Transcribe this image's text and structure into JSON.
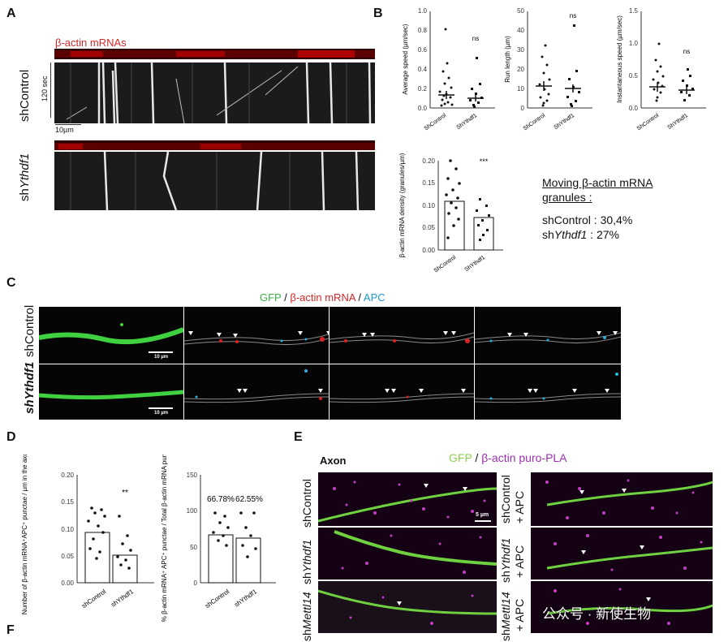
{
  "panels": {
    "A": "A",
    "B": "B",
    "C": "C",
    "D": "D",
    "E": "E",
    "F": "F"
  },
  "panelA": {
    "rna_label": "β-actin mRNAs",
    "row1": "shControl",
    "row2_prefix": "sh",
    "row2_italic": "Ythdf1",
    "time_label": "120 sec",
    "scale_label": "10µm"
  },
  "panelB": {
    "chart_data": [
      {
        "type": "scatter",
        "ylabel": "Average speed (µm/sec)",
        "categories": [
          "ShControl",
          "ShYthdf1"
        ],
        "ylim": [
          0,
          1.0
        ],
        "yticks": [
          "0.0",
          "0.2",
          "0.4",
          "0.6",
          "0.8",
          "1.0"
        ],
        "means": [
          0.13,
          0.1
        ],
        "significance": "ns"
      },
      {
        "type": "scatter",
        "ylabel": "Run length (µm)",
        "categories": [
          "ShControl",
          "ShYthdf1"
        ],
        "ylim": [
          0,
          50
        ],
        "yticks": [
          "0",
          "10",
          "20",
          "30",
          "40",
          "50"
        ],
        "means": [
          11,
          10
        ],
        "significance": "ns"
      },
      {
        "type": "scatter",
        "ylabel": "Instantaneous speed (µm/sec)",
        "categories": [
          "ShControl",
          "ShYthdf1"
        ],
        "ylim": [
          0,
          1.5
        ],
        "yticks": [
          "0.0",
          "0.5",
          "1.0",
          "1.5"
        ],
        "means": [
          0.32,
          0.28
        ],
        "significance": "ns"
      },
      {
        "type": "bar",
        "ylabel": "β-actin mRNA density (granules/µm)",
        "categories": [
          "ShControl",
          "ShYthdf1"
        ],
        "values": [
          0.11,
          0.072
        ],
        "ylim": [
          0,
          0.2
        ],
        "yticks": [
          "0.00",
          "0.05",
          "0.10",
          "0.15",
          "0.20"
        ],
        "significance": "***"
      }
    ],
    "summary_title_1": "Moving β-actin mRNA",
    "summary_title_2": "granules :",
    "summary_line1": "shControl : 30,4%",
    "summary_line2_prefix": "sh",
    "summary_line2_italic": "Ythdf1",
    "summary_line2_suffix": " : 27%"
  },
  "panelC": {
    "legend_gfp": "GFP",
    "legend_sep1": " / ",
    "legend_rna": "β-actin mRNA",
    "legend_sep2": " / ",
    "legend_apc": "APC",
    "row1": "shControl",
    "row2_prefix": "sh",
    "row2_italic": "Ythdf1",
    "scale_label": "10 µm"
  },
  "panelD": {
    "chart_data": [
      {
        "type": "bar",
        "ylabel": "Number of β-actin mRNA⁺APC⁺ punctae / µm in the axon",
        "categories": [
          "shControl",
          "shYthdf1"
        ],
        "values": [
          0.093,
          0.052
        ],
        "ylim": [
          0,
          0.2
        ],
        "yticks": [
          "0.00",
          "0.05",
          "0.10",
          "0.15",
          "0.20"
        ],
        "significance": "**"
      },
      {
        "type": "bar",
        "ylabel": "% β-actin mRNA⁺ APC⁺ punctae / Total β-actin mRNA punctae",
        "categories": [
          "shControl",
          "shYthdf1"
        ],
        "values": [
          66.78,
          62.55
        ],
        "value_labels": [
          "66.78%",
          "62.55%"
        ],
        "ylim": [
          0,
          150
        ],
        "yticks": [
          "0",
          "50",
          "100",
          "150"
        ]
      }
    ]
  },
  "panelE": {
    "axon_label": "Axon",
    "legend_gfp": "GFP",
    "legend_sep": " / ",
    "legend_pla": "β-actin puro-PLA",
    "row1": "shControl",
    "row2_prefix": "sh",
    "row2_italic": "Ythdf1",
    "row3_prefix": "sh",
    "row3_italic": "Mettl14",
    "row1b": "shControl",
    "row2b_prefix": "sh",
    "row2b_italic": "Ythdf1",
    "row3b_prefix": "sh",
    "row3b_italic": "Mettl14",
    "apc_suffix": "+ APC",
    "scale_label": "5 µm"
  },
  "watermark": "公众号 · 新使生物"
}
